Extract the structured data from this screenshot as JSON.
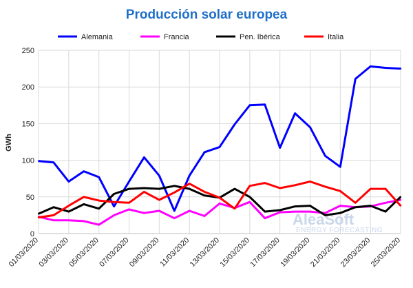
{
  "chart_data": {
    "type": "line",
    "title": "Producción solar europea",
    "ylabel": "GWh",
    "xlabel": "",
    "ylim": [
      0,
      250
    ],
    "yticks": [
      0,
      50,
      100,
      150,
      200,
      250
    ],
    "grid": true,
    "legend_position": "top",
    "x": [
      "01/03/2020",
      "02/03/2020",
      "03/03/2020",
      "04/03/2020",
      "05/03/2020",
      "06/03/2020",
      "07/03/2020",
      "08/03/2020",
      "09/03/2020",
      "10/03/2020",
      "11/03/2020",
      "12/03/2020",
      "13/03/2020",
      "14/03/2020",
      "15/03/2020",
      "16/03/2020",
      "17/03/2020",
      "18/03/2020",
      "19/03/2020",
      "20/03/2020",
      "21/03/2020",
      "22/03/2020",
      "23/03/2020",
      "24/03/2020",
      "25/03/2020"
    ],
    "xtick_labels": [
      "01/03/2020",
      "03/03/2020",
      "05/03/2020",
      "07/03/2020",
      "09/03/2020",
      "11/03/2020",
      "13/03/2020",
      "15/03/2020",
      "17/03/2020",
      "19/03/2020",
      "21/03/2020",
      "23/03/2020",
      "25/03/2020"
    ],
    "series": [
      {
        "name": "Alemania",
        "color": "#0000ff",
        "values": [
          99,
          97,
          71,
          85,
          77,
          37,
          71,
          104,
          79,
          31,
          79,
          111,
          118,
          149,
          175,
          176,
          117,
          164,
          145,
          106,
          91,
          211,
          228,
          226,
          225
        ]
      },
      {
        "name": "Francia",
        "color": "#ff00ff",
        "values": [
          23,
          18,
          18,
          17,
          12,
          25,
          33,
          28,
          31,
          21,
          31,
          24,
          41,
          35,
          43,
          21,
          29,
          30,
          30,
          28,
          38,
          36,
          37,
          42,
          46
        ]
      },
      {
        "name": "Pen. Ibérica",
        "color": "#000000",
        "values": [
          27,
          36,
          30,
          40,
          34,
          54,
          61,
          62,
          61,
          65,
          61,
          52,
          49,
          61,
          50,
          30,
          32,
          37,
          38,
          25,
          28,
          36,
          38,
          30,
          50
        ]
      },
      {
        "name": "Italia",
        "color": "#ff0000",
        "values": [
          22,
          25,
          38,
          50,
          45,
          43,
          42,
          57,
          46,
          56,
          68,
          57,
          49,
          34,
          65,
          69,
          62,
          66,
          71,
          64,
          58,
          42,
          61,
          61,
          38
        ]
      }
    ],
    "watermark": {
      "brand": "AleaSoft",
      "tagline": "ENERGY FORECASTING"
    }
  }
}
